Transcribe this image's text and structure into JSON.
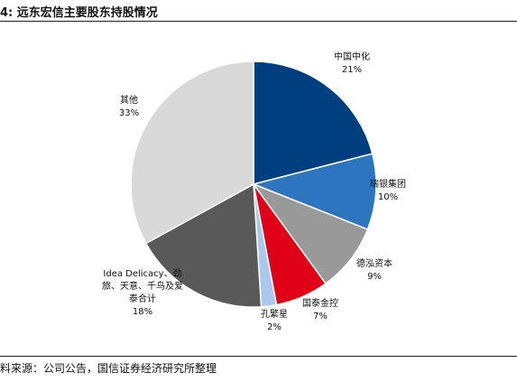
{
  "figure": {
    "title": "4: 远东宏信主要股东持股情况",
    "source": "料来源：公司公告，国信证券经济研究所整理"
  },
  "chart_data": {
    "type": "pie",
    "title": "远东宏信主要股东持股情况",
    "start": "12 o'clock",
    "direction": "clockwise",
    "slices": [
      {
        "name": "中国中化",
        "value": 21,
        "label": "21%",
        "color": "#003F7F"
      },
      {
        "name": "瑞银集团",
        "value": 10,
        "label": "10%",
        "color": "#2E75C0"
      },
      {
        "name": "德泓资本",
        "value": 9,
        "label": "9%",
        "color": "#999999"
      },
      {
        "name": "国泰金控",
        "value": 7,
        "label": "7%",
        "color": "#E00018"
      },
      {
        "name": "孔繁星",
        "value": 2,
        "label": "2%",
        "color": "#A9C8EB"
      },
      {
        "name": "Idea Delicacy、劲旅、天意、千鸟及爱泰合计",
        "value": 18,
        "label": "18%",
        "color": "#595959"
      },
      {
        "name": "其他",
        "value": 33,
        "label": "33%",
        "color": "#D9D9D9"
      }
    ]
  }
}
